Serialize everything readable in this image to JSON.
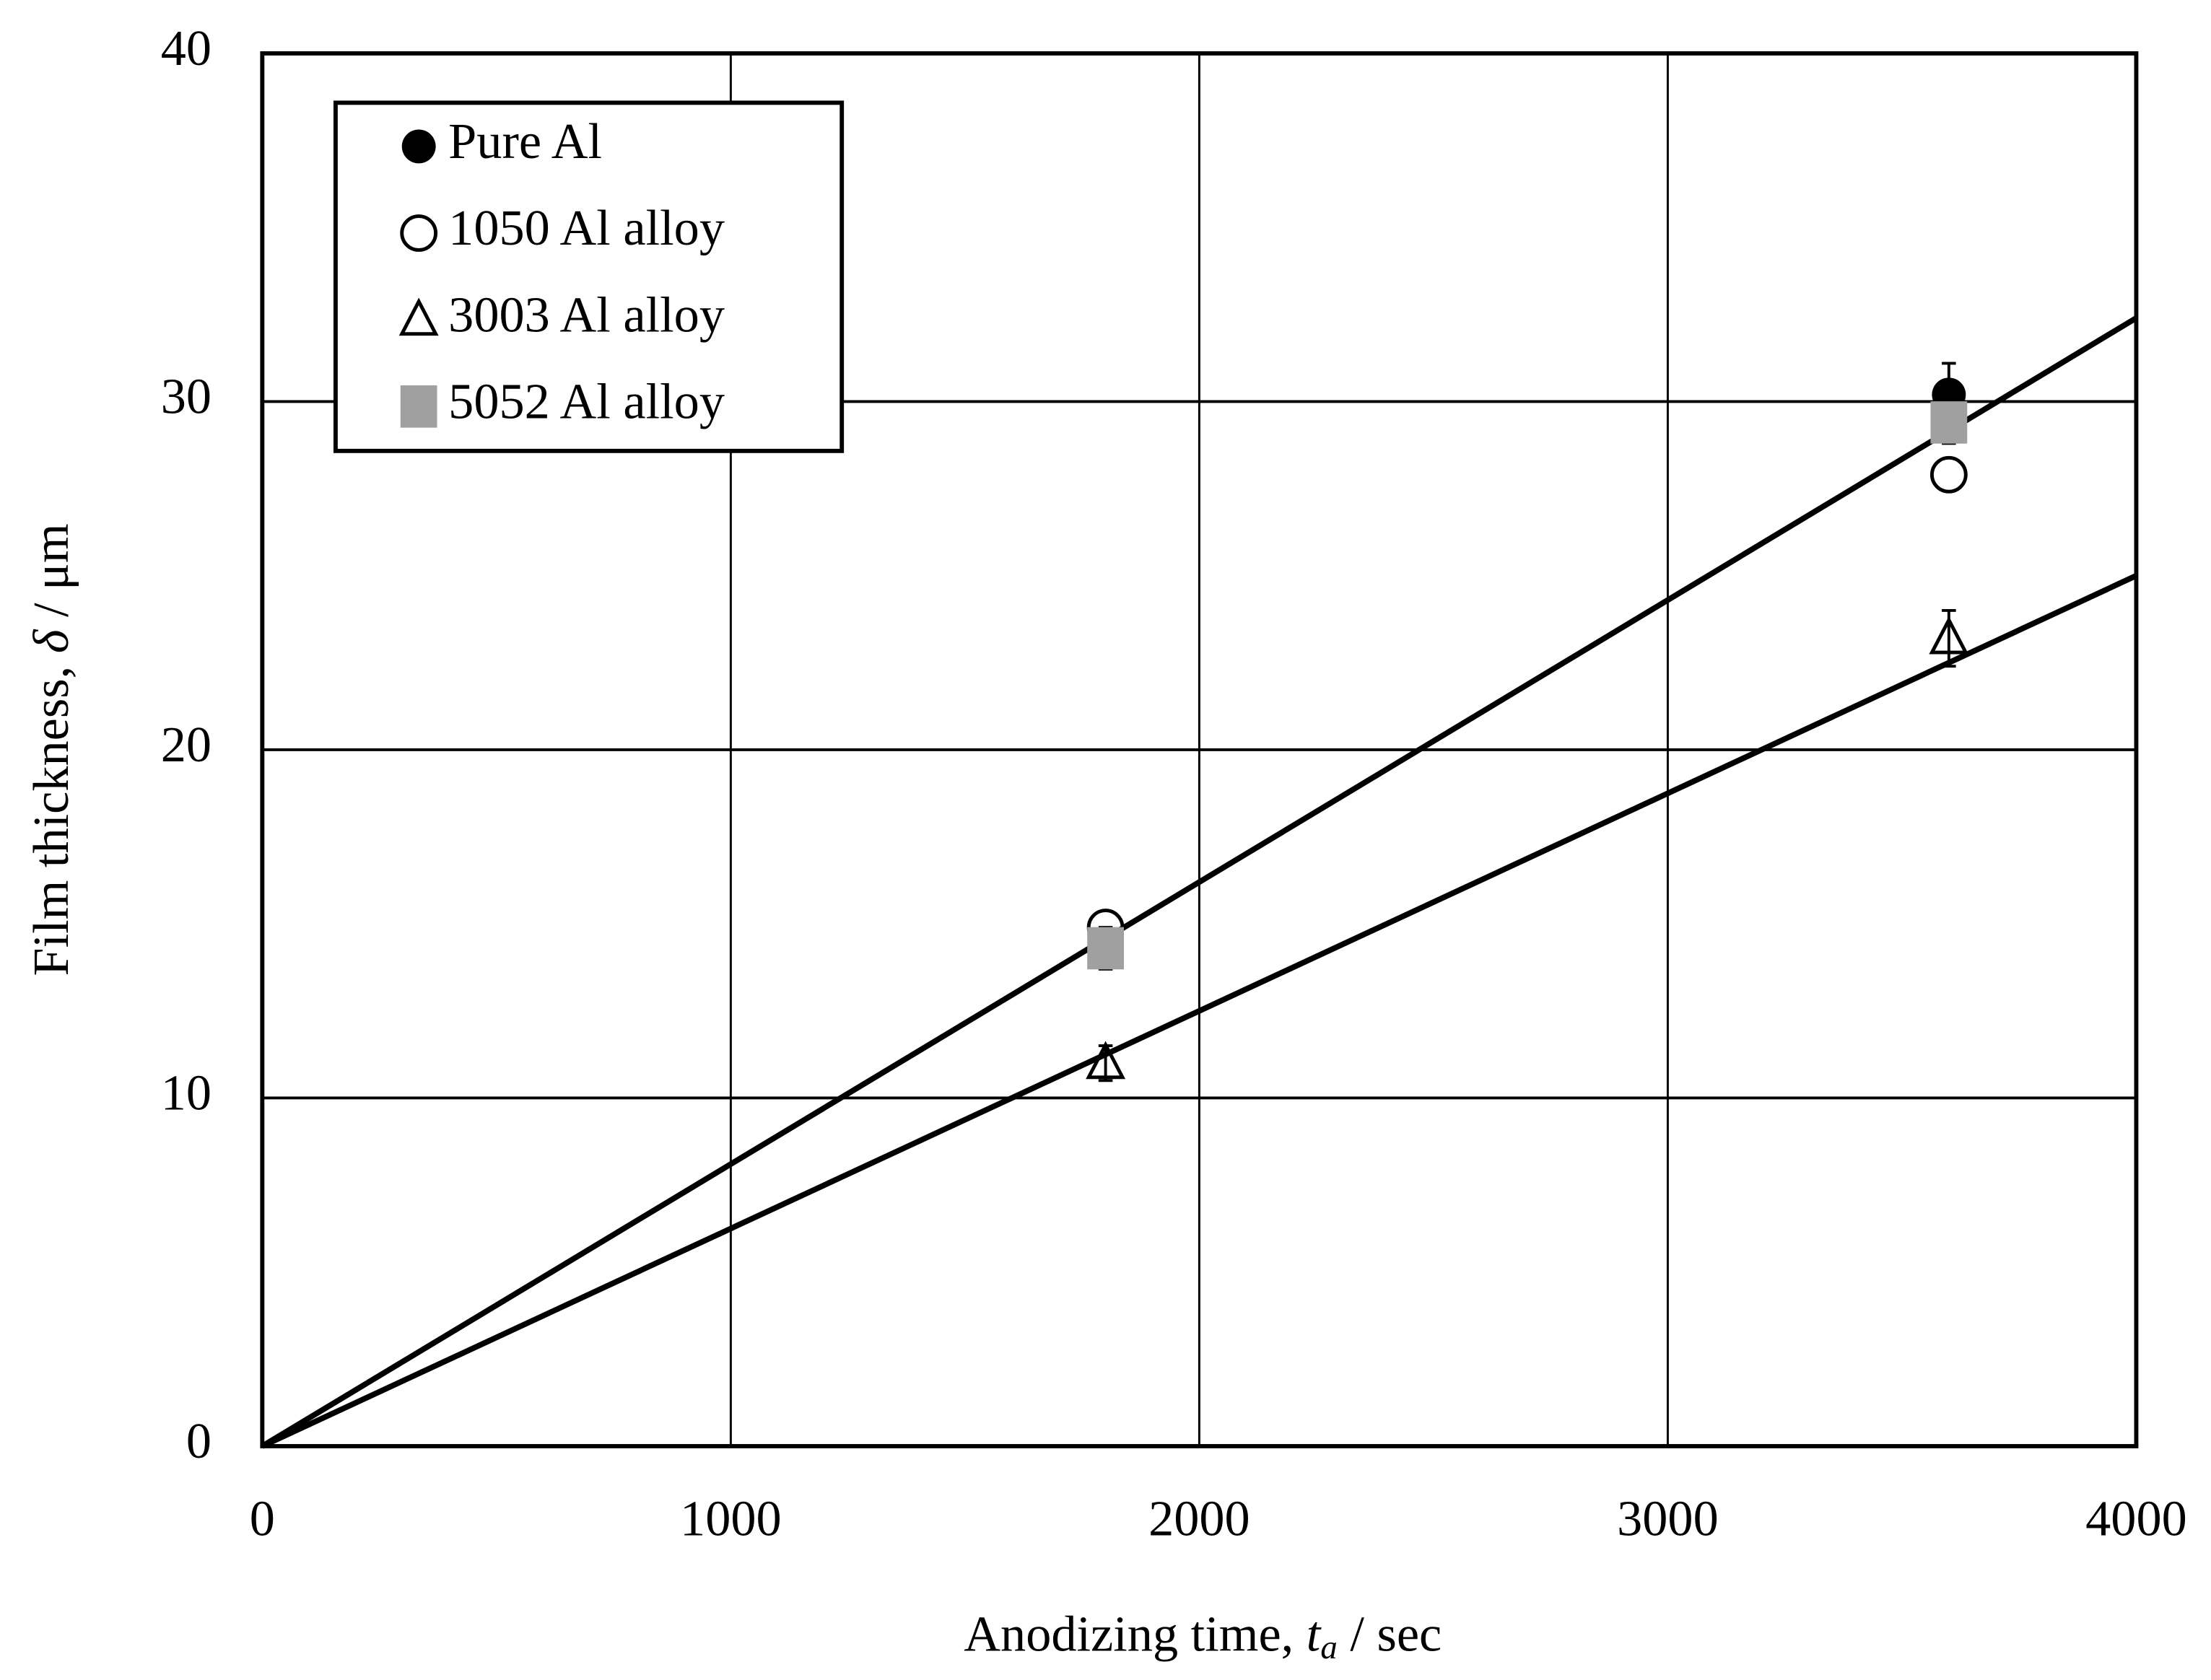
{
  "chart_data": {
    "type": "scatter",
    "xlabel": [
      "Anodizing time, ",
      "t",
      "a",
      " / sec"
    ],
    "ylabel": [
      "Film thickness,  ",
      "δ",
      " / μm"
    ],
    "xlim": [
      0,
      4000
    ],
    "xticks": [
      0,
      1000,
      2000,
      3000,
      4000
    ],
    "ylim": [
      0,
      40
    ],
    "yticks": [
      0,
      10,
      20,
      30,
      40
    ],
    "grid": true,
    "legend": "upper left",
    "series": [
      {
        "name": "Pure Al",
        "marker": "filled-circle",
        "color": "#000000",
        "x": [
          3600
        ],
        "values": [
          30.2
        ],
        "errors": [
          0.9
        ]
      },
      {
        "name": "1050 Al alloy",
        "marker": "open-circle",
        "color": "#000000",
        "x": [
          1800,
          3600
        ],
        "values": [
          14.9,
          27.9
        ]
      },
      {
        "name": "3003 Al alloy",
        "marker": "open-triangle",
        "color": "#000000",
        "x": [
          1800,
          3600
        ],
        "values": [
          11.0,
          23.2
        ],
        "errors": [
          0.5,
          0.8
        ]
      },
      {
        "name": "5052 Al alloy",
        "marker": "square",
        "color": "#a0a0a0",
        "x": [
          1800,
          3600
        ],
        "values": [
          14.3,
          29.4
        ],
        "errors": [
          0.6,
          0.6
        ]
      }
    ],
    "fit_lines": [
      {
        "x": [
          0,
          4000
        ],
        "values": [
          0,
          32.4
        ]
      },
      {
        "x": [
          0,
          4000
        ],
        "values": [
          0,
          25.0
        ]
      }
    ]
  }
}
